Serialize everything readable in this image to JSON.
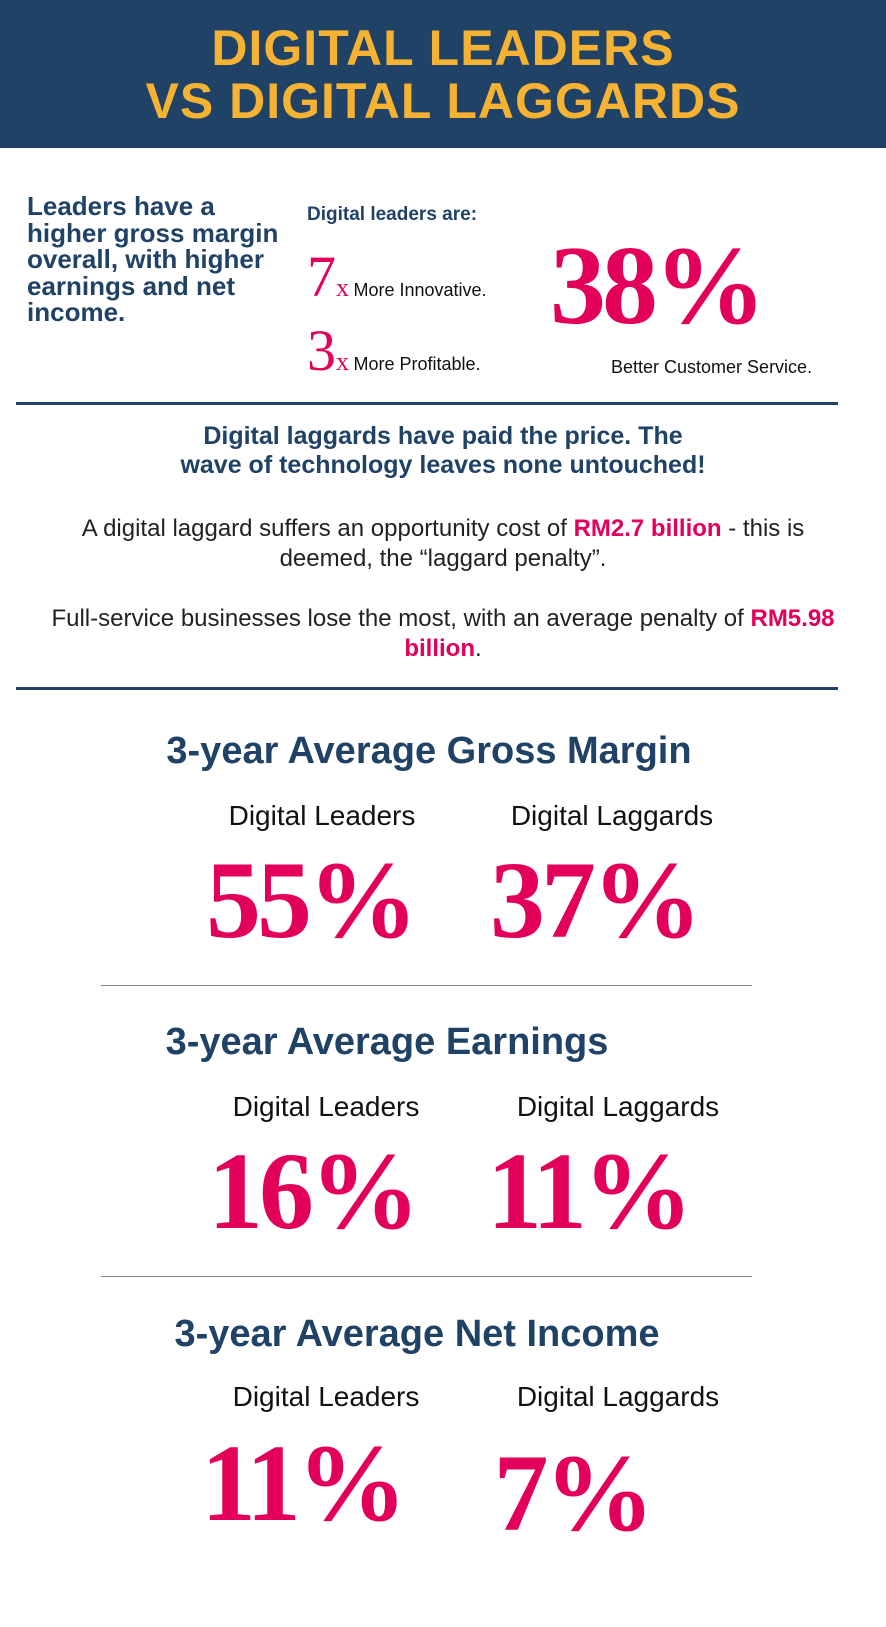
{
  "header": {
    "title_line1": "DIGITAL LEADERS",
    "title_line2": "VS DIGITAL LAGGARDS"
  },
  "intro": {
    "lead": "Leaders have a higher gross margin overall, with higher earnings and net income.",
    "are_label": "Digital leaders are:",
    "stats": [
      {
        "value": "7",
        "suffix": "x",
        "label": "More Innovative."
      },
      {
        "value": "3",
        "suffix": "x",
        "label": "More Profitable."
      }
    ],
    "service": {
      "value": "38%",
      "label": "Better Customer Service."
    }
  },
  "penalty": {
    "heading_line1": "Digital laggards have paid the price. The",
    "heading_line2": "wave of technology leaves none untouched!",
    "p1_pre": "A digital laggard suffers an opportunity cost of ",
    "p1_hl": "RM2.7 billion",
    "p1_post": " - this is deemed, the “laggard penalty”.",
    "p2_pre": "Full-service businesses lose the most, with an average penalty of ",
    "p2_hl": "RM5.98 billion",
    "p2_post": "."
  },
  "colors": {
    "navy": "#1f4266",
    "gold": "#f6b233",
    "pink": "#e3005a"
  },
  "metrics": [
    {
      "title": "3-year Average Gross Margin",
      "leaders_label": "Digital Leaders",
      "leaders_value": "55%",
      "laggards_label": "Digital Laggards",
      "laggards_value": "37%"
    },
    {
      "title": "3-year Average Earnings",
      "leaders_label": "Digital Leaders",
      "leaders_value": "16%",
      "laggards_label": "Digital Laggards",
      "laggards_value": "11%"
    },
    {
      "title": "3-year Average Net Income",
      "leaders_label": "Digital Leaders",
      "leaders_value": "11%",
      "laggards_label": "Digital Laggards",
      "laggards_value": "7%"
    }
  ]
}
